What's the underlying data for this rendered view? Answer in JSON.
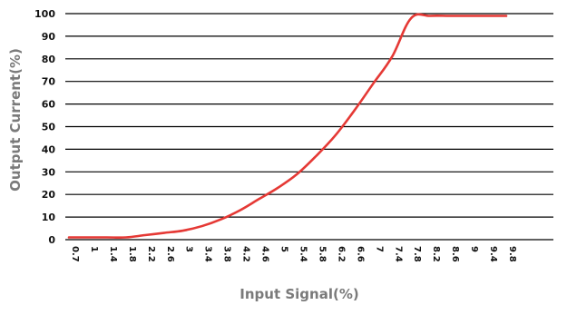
{
  "chart_data": {
    "type": "line",
    "xlabel": "Input Signal(%)",
    "ylabel": "Output Current(%)",
    "ylim": [
      0,
      100
    ],
    "y_ticks": [
      "0",
      "10",
      "20",
      "30",
      "40",
      "50",
      "60",
      "70",
      "80",
      "90",
      "100"
    ],
    "x_ticks": [
      "0.7",
      "1",
      "1.4",
      "1.8",
      "2.2",
      "2.6",
      "3",
      "3.4",
      "3.8",
      "4.2",
      "4.6",
      "5",
      "5.4",
      "5.8",
      "6.2",
      "6.6",
      "7",
      "7.4",
      "7.8",
      "8.2",
      "8.6",
      "9",
      "9.4",
      "9.8"
    ],
    "grid": "horizontal",
    "legend": "none",
    "series": [
      {
        "color": "#e53935",
        "x": [
          "0.7",
          "1",
          "1.4",
          "1.8",
          "2.2",
          "2.6",
          "3",
          "3.4",
          "3.8",
          "4.2",
          "4.6",
          "5",
          "5.4",
          "5.8",
          "6.2",
          "6.6",
          "7",
          "7.4",
          "7.8",
          "8.2",
          "8.6",
          "9",
          "9.4",
          "9.8"
        ],
        "values": [
          1,
          1,
          1,
          1,
          2,
          3,
          4,
          6,
          9,
          13,
          18,
          23,
          29,
          37,
          46,
          57,
          69,
          81,
          98,
          99,
          99,
          99,
          99,
          99
        ]
      }
    ]
  },
  "colors": {
    "line": "#e53935",
    "grid": "#000000",
    "axis_title": "#7a7a7a",
    "tick_text": "#111111"
  }
}
